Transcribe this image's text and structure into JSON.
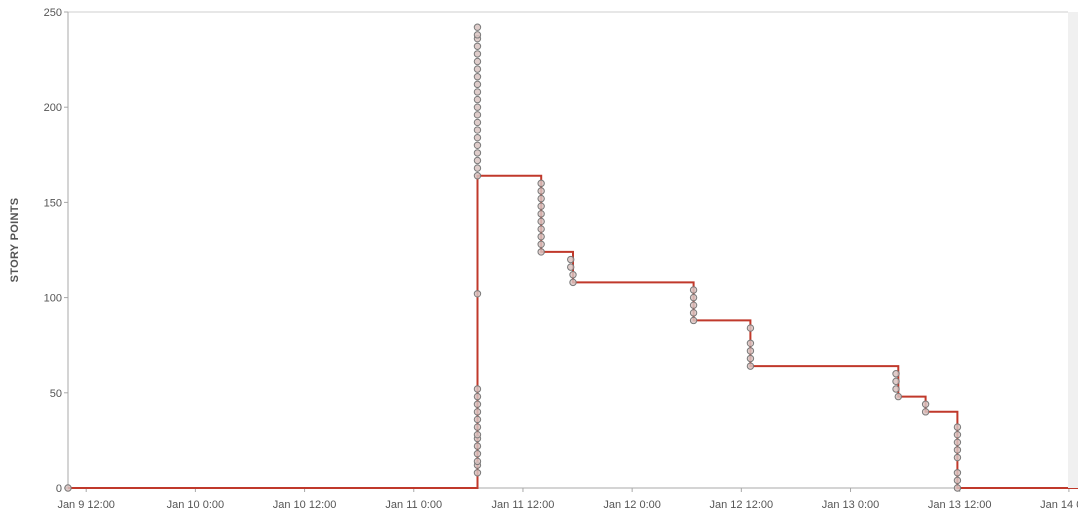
{
  "chart_data": {
    "type": "line",
    "ylabel": "STORY POINTS",
    "xlabel": "",
    "ylim": [
      0,
      250
    ],
    "yticks": [
      0,
      50,
      100,
      150,
      200,
      250
    ],
    "xlim": [
      "2024-01-09T10:00",
      "2024-01-14T01:00"
    ],
    "xtick_labels": [
      "Jan 9 12:00",
      "Jan 10 0:00",
      "Jan 10 12:00",
      "Jan 11 0:00",
      "Jan 11 12:00",
      "Jan 12 0:00",
      "Jan 12 12:00",
      "Jan 13 0:00",
      "Jan 13 12:00",
      "Jan 14 0:00"
    ],
    "xticks": [
      "2024-01-09T12:00",
      "2024-01-10T00:00",
      "2024-01-10T12:00",
      "2024-01-11T00:00",
      "2024-01-11T12:00",
      "2024-01-12T00:00",
      "2024-01-12T12:00",
      "2024-01-13T00:00",
      "2024-01-13T12:00",
      "2024-01-14T00:00"
    ],
    "grid": false,
    "line_color": "#c0392b",
    "marker_stroke": "#7a7a7a",
    "marker_fill": "#d9c4c2",
    "step_line": [
      [
        "2024-01-09T10:00",
        0
      ],
      [
        "2024-01-11T07:00",
        0
      ],
      [
        "2024-01-11T07:00",
        164
      ],
      [
        "2024-01-11T14:00",
        164
      ],
      [
        "2024-01-11T14:00",
        124
      ],
      [
        "2024-01-11T17:30",
        124
      ],
      [
        "2024-01-11T17:30",
        108
      ],
      [
        "2024-01-12T06:45",
        108
      ],
      [
        "2024-01-12T06:45",
        88
      ],
      [
        "2024-01-12T13:00",
        88
      ],
      [
        "2024-01-12T13:00",
        64
      ],
      [
        "2024-01-13T05:15",
        64
      ],
      [
        "2024-01-13T05:15",
        48
      ],
      [
        "2024-01-13T08:15",
        48
      ],
      [
        "2024-01-13T08:15",
        40
      ],
      [
        "2024-01-13T11:45",
        40
      ],
      [
        "2024-01-13T11:45",
        0
      ],
      [
        "2024-01-14T01:00",
        0
      ]
    ],
    "points": [
      {
        "x": "2024-01-09T10:00",
        "y": [
          0
        ]
      },
      {
        "x": "2024-01-11T07:00",
        "y": [
          8,
          12,
          14,
          18,
          22,
          26,
          28,
          32,
          36,
          40,
          44,
          48,
          52,
          102,
          164,
          168,
          172,
          176,
          180,
          184,
          188,
          192,
          196,
          200,
          204,
          208,
          212,
          216,
          220,
          224,
          228,
          232,
          236,
          238,
          242
        ]
      },
      {
        "x": "2024-01-11T14:00",
        "y": [
          124,
          128,
          132,
          136,
          140,
          144,
          148,
          152,
          156,
          160
        ]
      },
      {
        "x": "2024-01-11T17:15",
        "y": [
          116,
          120
        ]
      },
      {
        "x": "2024-01-11T17:30",
        "y": [
          108,
          112
        ]
      },
      {
        "x": "2024-01-12T06:45",
        "y": [
          88,
          92,
          96,
          100,
          104
        ]
      },
      {
        "x": "2024-01-12T13:00",
        "y": [
          64,
          68,
          72,
          76,
          84
        ]
      },
      {
        "x": "2024-01-13T05:00",
        "y": [
          52,
          56,
          60
        ]
      },
      {
        "x": "2024-01-13T05:15",
        "y": [
          48
        ]
      },
      {
        "x": "2024-01-13T08:15",
        "y": [
          40,
          44
        ]
      },
      {
        "x": "2024-01-13T11:45",
        "y": [
          0,
          4,
          8,
          16,
          20,
          24,
          28,
          32
        ]
      }
    ]
  }
}
